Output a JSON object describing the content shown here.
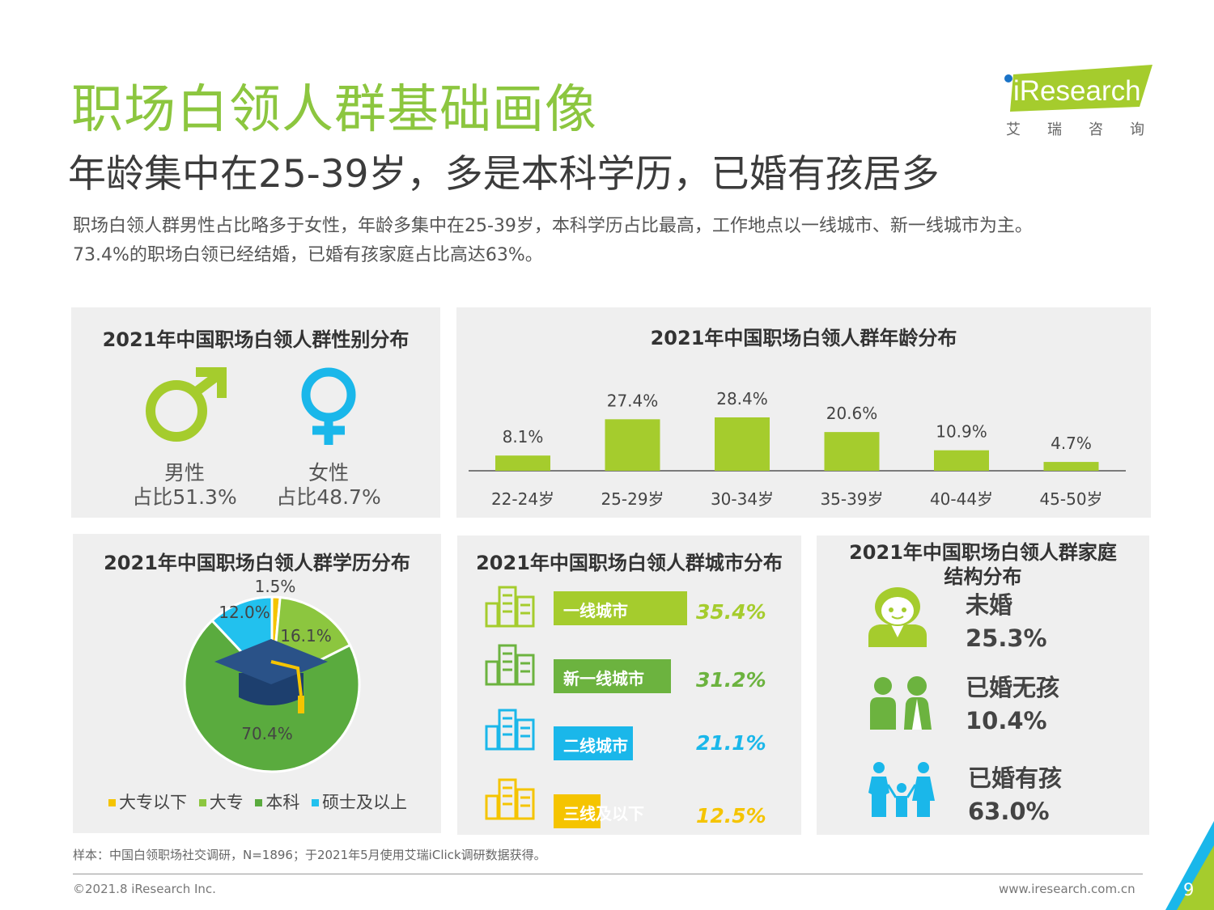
{
  "header": {
    "title": "职场白领人群基础画像",
    "subtitle": "年龄集中在25-39岁，多是本科学历，已婚有孩居多",
    "desc_line1": "职场白领人群男性占比略多于女性，年龄多集中在25-39岁，本科学历占比最高，工作地点以一线城市、新一线城市为主。",
    "desc_line2": "73.4%的职场白领已经结婚，已婚有孩家庭占比高达63%。"
  },
  "logo": {
    "text": "iResearch",
    "cn": "艾瑞咨询"
  },
  "gender": {
    "title": "2021年中国职场白领人群性别分布",
    "male_label": "男性",
    "male_value": "占比51.3%",
    "female_label": "女性",
    "female_value": "占比48.7%",
    "colors": {
      "male": "#a5cc2d",
      "female": "#1ab7ea"
    }
  },
  "chart_data": [
    {
      "type": "bar",
      "title": "2021年中国职场白领人群年龄分布",
      "categories": [
        "22-24岁",
        "25-29岁",
        "30-34岁",
        "35-39岁",
        "40-44岁",
        "45-50岁"
      ],
      "values": [
        8.1,
        27.4,
        28.4,
        20.6,
        10.9,
        4.7
      ],
      "labels": [
        "8.1%",
        "27.4%",
        "28.4%",
        "20.6%",
        "10.9%",
        "4.7%"
      ],
      "color": "#a5cc2d"
    },
    {
      "type": "pie",
      "title": "2021年中国职场白领人群学历分布",
      "categories": [
        "大专以下",
        "大专",
        "本科",
        "硕士及以上"
      ],
      "values": [
        1.5,
        16.1,
        70.4,
        12.0
      ],
      "labels": [
        "1.5%",
        "16.1%",
        "70.4%",
        "12.0%"
      ],
      "colors": [
        "#f5c400",
        "#8cc63f",
        "#5aab3e",
        "#22c1ee"
      ]
    },
    {
      "type": "bar",
      "title": "2021年中国职场白领人群城市分布",
      "categories": [
        "一线城市",
        "新一线城市",
        "二线城市",
        "三线及以下"
      ],
      "values": [
        35.4,
        31.2,
        21.1,
        12.5
      ],
      "labels": [
        "35.4%",
        "31.2%",
        "21.1%",
        "12.5%"
      ],
      "colors": [
        "#a5cc2d",
        "#6cb33f",
        "#1ab7ea",
        "#f5c400"
      ]
    },
    {
      "type": "table",
      "title": "2021年中国职场白领人群家庭结构分布",
      "categories": [
        "未婚",
        "已婚无孩",
        "已婚有孩"
      ],
      "values": [
        25.3,
        10.4,
        63.0
      ],
      "labels": [
        "25.3%",
        "10.4%",
        "63.0%"
      ]
    }
  ],
  "family": {
    "title_line1": "2021年中国职场白领人群家庭",
    "title_line2": "结构分布",
    "colors": {
      "single": "#a5cc2d",
      "couple": "#6cb33f",
      "family": "#1ab7ea"
    }
  },
  "footer": {
    "note": "样本：中国白领职场社交调研，N=1896；于2021年5月使用艾瑞iClick调研数据获得。",
    "copyright": "©2021.8 iResearch Inc.",
    "website": "www.iresearch.com.cn",
    "page": "9"
  }
}
